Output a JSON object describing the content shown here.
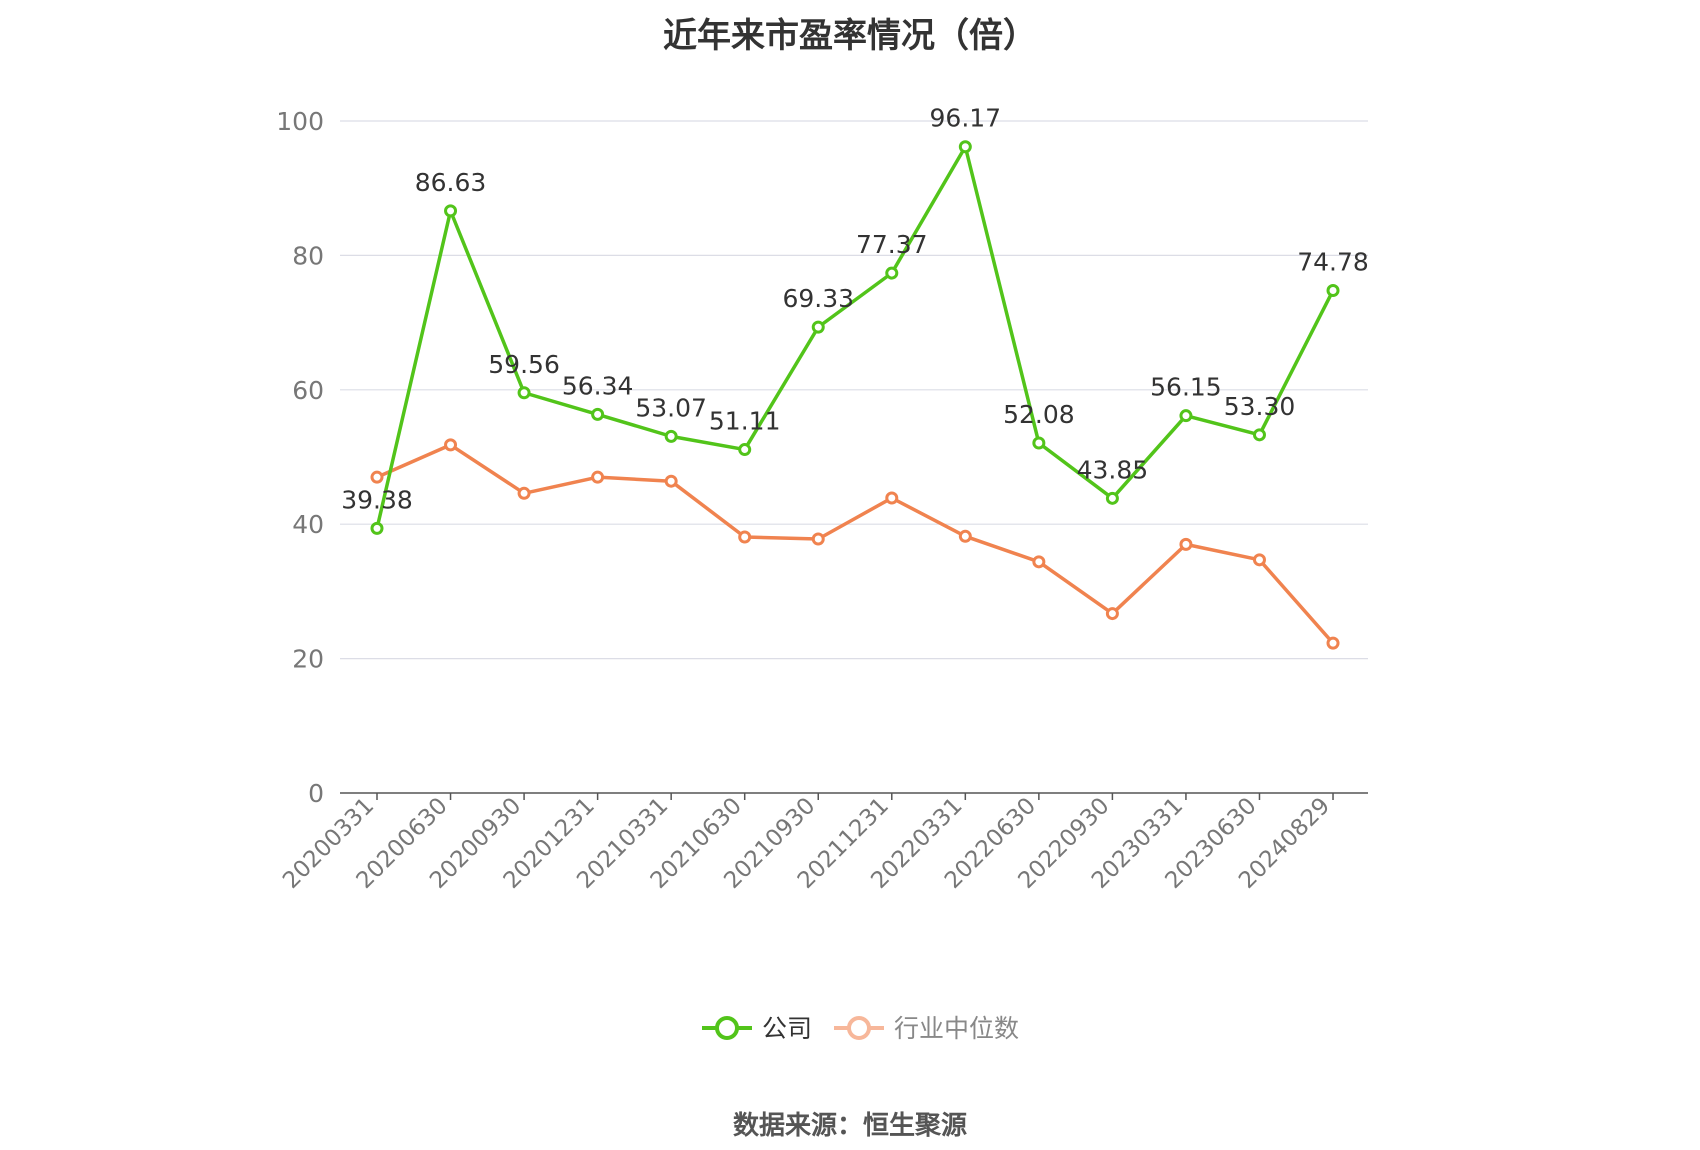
{
  "chart_data": {
    "type": "line",
    "title": "近年来市盈率情况（倍）",
    "source": "数据来源：恒生聚源",
    "categories": [
      "20200331",
      "20200630",
      "20200930",
      "20201231",
      "20210331",
      "20210630",
      "20210930",
      "20211231",
      "20220331",
      "20220630",
      "20220930",
      "20230331",
      "20230630",
      "20240829"
    ],
    "ylim": [
      0,
      100
    ],
    "yticks": [
      "0",
      "20",
      "40",
      "60",
      "80",
      "100"
    ],
    "grid": true,
    "legend_position": "bottom-center",
    "series": [
      {
        "name": "公司",
        "color": "#52c41a",
        "values": [
          39.38,
          86.63,
          59.56,
          56.34,
          53.07,
          51.11,
          69.33,
          77.37,
          96.17,
          52.08,
          43.85,
          56.15,
          53.3,
          74.78
        ],
        "labels": [
          "39.38",
          "86.63",
          "59.56",
          "56.34",
          "53.07",
          "51.11",
          "69.33",
          "77.37",
          "96.17",
          "52.08",
          "43.85",
          "56.15",
          "53.30",
          "74.78"
        ]
      },
      {
        "name": "行业中位数",
        "color": "#f0834f",
        "legend_color": "#f7b79a",
        "values": [
          47.0,
          51.8,
          44.6,
          47.0,
          46.4,
          38.1,
          37.8,
          43.9,
          38.2,
          34.4,
          26.7,
          37.0,
          34.7,
          22.3
        ]
      }
    ]
  }
}
